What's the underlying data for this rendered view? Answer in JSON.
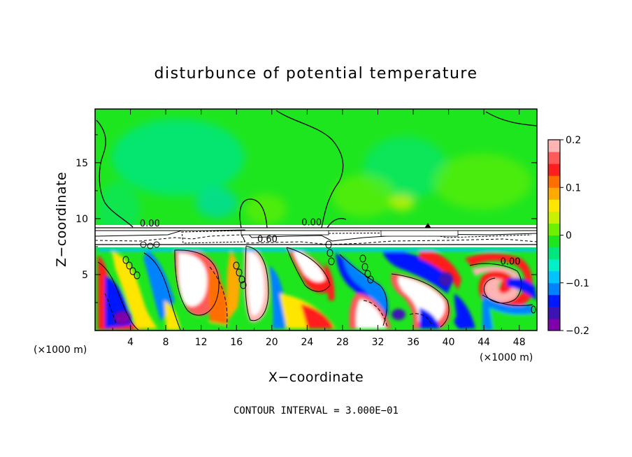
{
  "chart_data": {
    "type": "heatmap",
    "title": "disturbunce of potential temperature",
    "xlabel": "X−coordinate",
    "ylabel": "Z−coordinate",
    "x_unit": "(×1000 m)",
    "x_ticks": [
      4,
      8,
      12,
      16,
      20,
      24,
      28,
      32,
      36,
      40,
      44,
      48
    ],
    "y_ticks": [
      5,
      10,
      15
    ],
    "xlim": [
      0,
      50
    ],
    "ylim": [
      0,
      19.8
    ],
    "colorbar": {
      "ticks": [
        "0.2",
        "0.1",
        "0",
        "−0.1",
        "−0.2"
      ],
      "tick_values": [
        0.2,
        0.1,
        0,
        -0.1,
        -0.2
      ],
      "range": [
        -0.2,
        0.2
      ],
      "colors": [
        "#7f00ad",
        "#3c14b4",
        "#0019ff",
        "#0082ff",
        "#00c3ff",
        "#00f0c8",
        "#00e67e",
        "#1ee61e",
        "#6ef000",
        "#c8f000",
        "#ffe600",
        "#ffaa00",
        "#ff6e00",
        "#ff1e1e",
        "#ff5a5a",
        "#ffb4b4"
      ]
    },
    "contour_labels": [
      {
        "text": "0.00",
        "x": 6.2,
        "z": 9.3
      },
      {
        "text": "0.00",
        "x": 24.5,
        "z": 9.4
      },
      {
        "text": "0.60",
        "x": 19.5,
        "z": 7.9
      },
      {
        "text": "0.00",
        "x": 47.0,
        "z": 5.9
      }
    ],
    "contour_interval_text": "CONTOUR INTERVAL = 3.000E−01"
  }
}
